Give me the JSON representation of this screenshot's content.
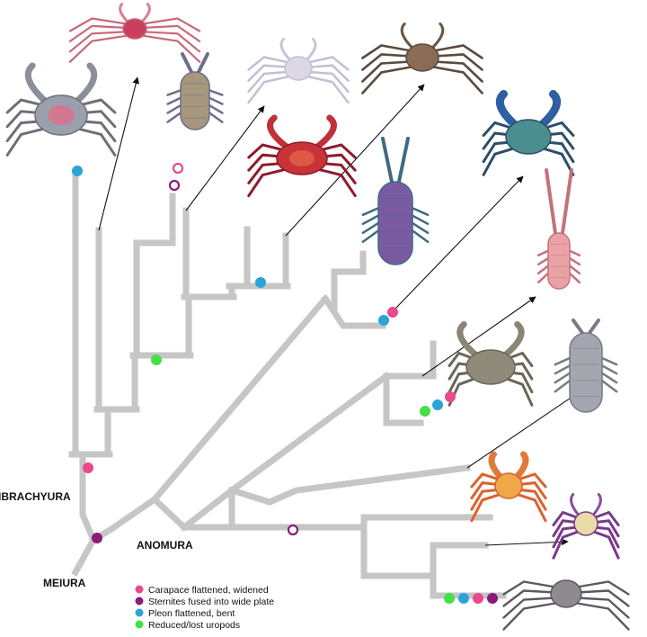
{
  "labels": {
    "brachyura": "IBRACHYURA",
    "anomura": "ANOMURA",
    "meiura": "MEIURA"
  },
  "legend": [
    {
      "label": "Carapace flattened, widened",
      "color": "#ea4a8d"
    },
    {
      "label": "Sternites fused into wide plate",
      "color": "#8a1c78"
    },
    {
      "label": "Pleon flattened, bent",
      "color": "#2ba3d8"
    },
    {
      "label": "Reduced/lost uropods",
      "color": "#44e04a"
    }
  ]
}
